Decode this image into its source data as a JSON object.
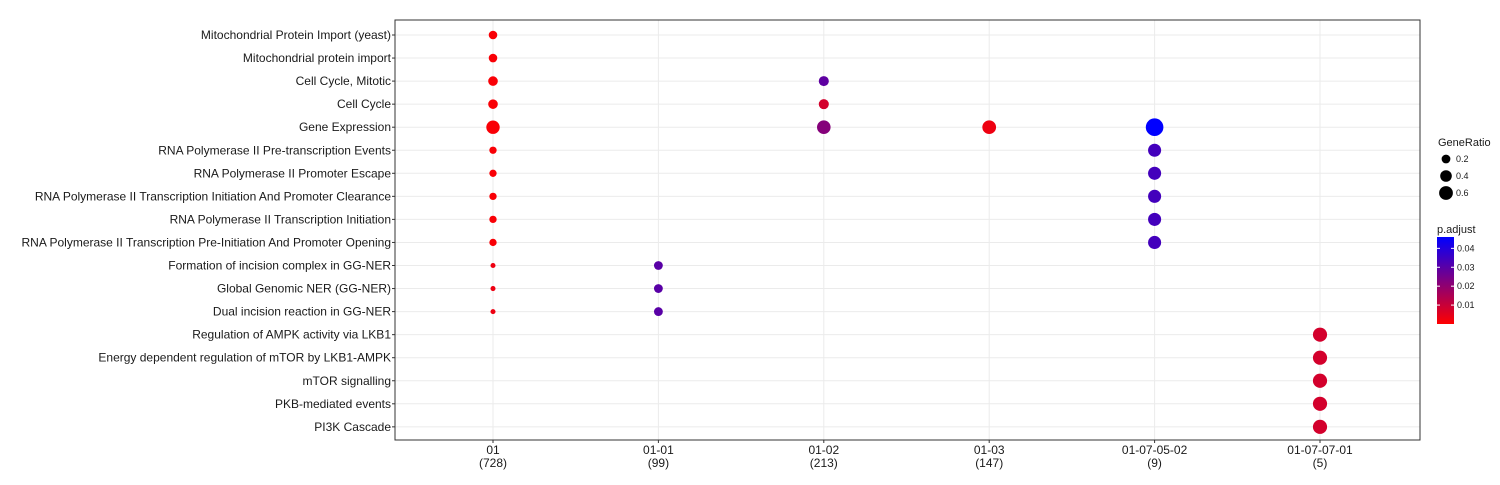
{
  "chart_data": {
    "type": "scatter",
    "title": "",
    "xlabel": "",
    "ylabel": "",
    "x_categories": [
      {
        "name": "01",
        "count": "(728)"
      },
      {
        "name": "01-01",
        "count": "(99)"
      },
      {
        "name": "01-02",
        "count": "(213)"
      },
      {
        "name": "01-03",
        "count": "(147)"
      },
      {
        "name": "01-07-05-02",
        "count": "(9)"
      },
      {
        "name": "01-07-07-01",
        "count": "(5)"
      }
    ],
    "y_categories": [
      "Mitochondrial Protein Import (yeast)",
      "Mitochondrial protein import",
      "Cell Cycle, Mitotic",
      "Cell Cycle",
      "Gene Expression",
      "RNA Polymerase II Pre-transcription Events",
      "RNA Polymerase II Promoter Escape",
      "RNA Polymerase II Transcription Initiation And Promoter Clearance",
      "RNA Polymerase II Transcription Initiation",
      "RNA Polymerase II Transcription Pre-Initiation And Promoter Opening",
      "Formation of incision complex in GG-NER",
      "Global Genomic NER (GG-NER)",
      "Dual incision reaction in GG-NER",
      "Regulation of AMPK activity via LKB1",
      "Energy dependent regulation of mTOR by LKB1-AMPK",
      "mTOR signalling",
      "PKB-mediated events",
      "PI3K Cascade"
    ],
    "points": [
      {
        "x": "01",
        "y": "Mitochondrial Protein Import (yeast)",
        "gene_ratio": 0.11,
        "p_adjust": 0.001
      },
      {
        "x": "01",
        "y": "Mitochondrial protein import",
        "gene_ratio": 0.11,
        "p_adjust": 0.001
      },
      {
        "x": "01",
        "y": "Cell Cycle, Mitotic",
        "gene_ratio": 0.15,
        "p_adjust": 0.001
      },
      {
        "x": "01",
        "y": "Cell Cycle",
        "gene_ratio": 0.15,
        "p_adjust": 0.001
      },
      {
        "x": "01",
        "y": "Gene Expression",
        "gene_ratio": 0.35,
        "p_adjust": 0.001
      },
      {
        "x": "01",
        "y": "RNA Polymerase II Pre-transcription Events",
        "gene_ratio": 0.07,
        "p_adjust": 0.001
      },
      {
        "x": "01",
        "y": "RNA Polymerase II Promoter Escape",
        "gene_ratio": 0.07,
        "p_adjust": 0.001
      },
      {
        "x": "01",
        "y": "RNA Polymerase II Transcription Initiation And Promoter Clearance",
        "gene_ratio": 0.07,
        "p_adjust": 0.001
      },
      {
        "x": "01",
        "y": "RNA Polymerase II Transcription Initiation",
        "gene_ratio": 0.07,
        "p_adjust": 0.001
      },
      {
        "x": "01",
        "y": "RNA Polymerase II Transcription Pre-Initiation And Promoter Opening",
        "gene_ratio": 0.07,
        "p_adjust": 0.001
      },
      {
        "x": "01",
        "y": "Formation of incision complex in GG-NER",
        "gene_ratio": 0.02,
        "p_adjust": 0.003
      },
      {
        "x": "01",
        "y": "Global Genomic NER (GG-NER)",
        "gene_ratio": 0.02,
        "p_adjust": 0.003
      },
      {
        "x": "01",
        "y": "Dual incision reaction in GG-NER",
        "gene_ratio": 0.02,
        "p_adjust": 0.003
      },
      {
        "x": "01-01",
        "y": "Formation of incision complex in GG-NER",
        "gene_ratio": 0.12,
        "p_adjust": 0.03
      },
      {
        "x": "01-01",
        "y": "Global Genomic NER (GG-NER)",
        "gene_ratio": 0.12,
        "p_adjust": 0.03
      },
      {
        "x": "01-01",
        "y": "Dual incision reaction in GG-NER",
        "gene_ratio": 0.12,
        "p_adjust": 0.03
      },
      {
        "x": "01-02",
        "y": "Cell Cycle, Mitotic",
        "gene_ratio": 0.17,
        "p_adjust": 0.029
      },
      {
        "x": "01-02",
        "y": "Cell Cycle",
        "gene_ratio": 0.17,
        "p_adjust": 0.008
      },
      {
        "x": "01-02",
        "y": "Gene Expression",
        "gene_ratio": 0.36,
        "p_adjust": 0.022
      },
      {
        "x": "01-03",
        "y": "Gene Expression",
        "gene_ratio": 0.37,
        "p_adjust": 0.003
      },
      {
        "x": "01-07-05-02",
        "y": "Gene Expression",
        "gene_ratio": 0.67,
        "p_adjust": 0.046
      },
      {
        "x": "01-07-05-02",
        "y": "RNA Polymerase II Pre-transcription Events",
        "gene_ratio": 0.33,
        "p_adjust": 0.034
      },
      {
        "x": "01-07-05-02",
        "y": "RNA Polymerase II Promoter Escape",
        "gene_ratio": 0.33,
        "p_adjust": 0.034
      },
      {
        "x": "01-07-05-02",
        "y": "RNA Polymerase II Transcription Initiation And Promoter Clearance",
        "gene_ratio": 0.33,
        "p_adjust": 0.034
      },
      {
        "x": "01-07-05-02",
        "y": "RNA Polymerase II Transcription Initiation",
        "gene_ratio": 0.33,
        "p_adjust": 0.034
      },
      {
        "x": "01-07-05-02",
        "y": "RNA Polymerase II Transcription Pre-Initiation And Promoter Opening",
        "gene_ratio": 0.33,
        "p_adjust": 0.034
      },
      {
        "x": "01-07-07-01",
        "y": "Regulation of AMPK activity via LKB1",
        "gene_ratio": 0.4,
        "p_adjust": 0.008
      },
      {
        "x": "01-07-07-01",
        "y": "Energy dependent regulation of mTOR by LKB1-AMPK",
        "gene_ratio": 0.4,
        "p_adjust": 0.008
      },
      {
        "x": "01-07-07-01",
        "y": "mTOR signalling",
        "gene_ratio": 0.4,
        "p_adjust": 0.008
      },
      {
        "x": "01-07-07-01",
        "y": "PKB-mediated events",
        "gene_ratio": 0.4,
        "p_adjust": 0.008
      },
      {
        "x": "01-07-07-01",
        "y": "PI3K Cascade",
        "gene_ratio": 0.4,
        "p_adjust": 0.008
      }
    ],
    "size_legend": {
      "title": "GeneRatio",
      "values": [
        0.2,
        0.4,
        0.6
      ],
      "labels": [
        "0.2",
        "0.4",
        "0.6"
      ]
    },
    "color_legend": {
      "title": "p.adjust",
      "range": [
        0.0,
        0.046
      ],
      "ticks": [
        0.01,
        0.02,
        0.03,
        0.04
      ],
      "tick_labels": [
        "0.01",
        "0.02",
        "0.03",
        "0.04"
      ],
      "low_color": "#ff0000",
      "high_color": "#0000ff"
    },
    "grid": true,
    "legend_position": "right"
  }
}
